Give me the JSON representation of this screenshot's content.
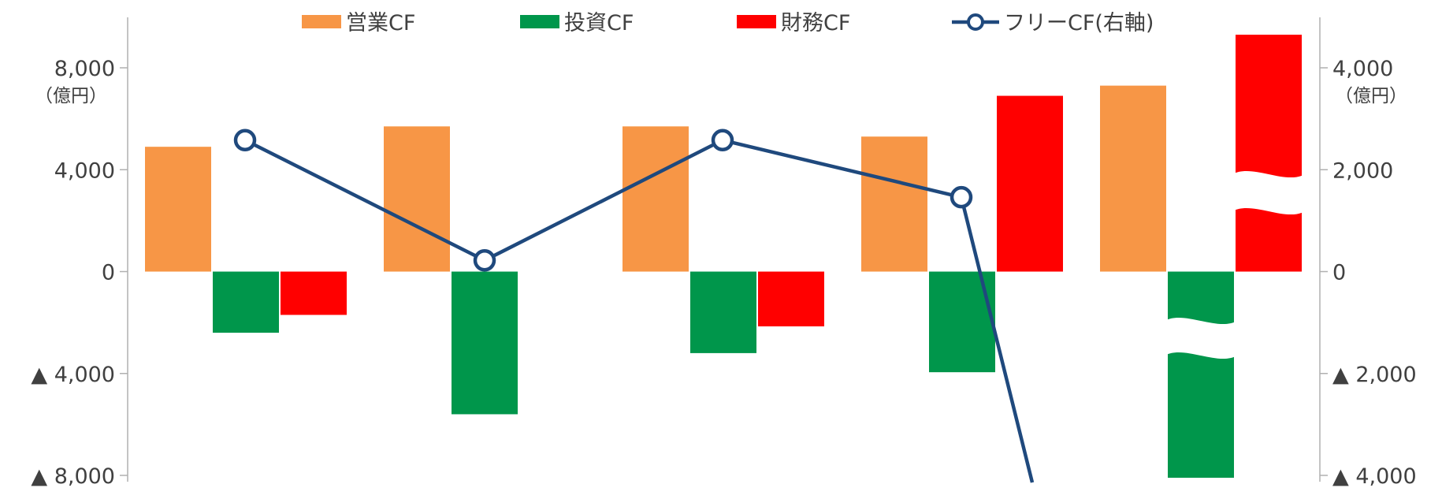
{
  "chart_data": {
    "type": "bar",
    "categories": [
      "",
      "",
      "",
      "",
      ""
    ],
    "series": [
      {
        "name": "営業CF",
        "kind": "bar",
        "axis": "left",
        "color": "#F79646",
        "values": [
          4900,
          5700,
          5700,
          5300,
          7300
        ]
      },
      {
        "name": "投資CF",
        "kind": "bar",
        "axis": "left",
        "color": "#00964B",
        "values": [
          -2400,
          -5600,
          -3200,
          -3950,
          -8100
        ]
      },
      {
        "name": "財務CF",
        "kind": "bar",
        "axis": "left",
        "color": "#FF0000",
        "values": [
          -1700,
          0,
          -2150,
          6900,
          9300
        ]
      },
      {
        "name": "フリーCF(右軸)",
        "kind": "line",
        "axis": "right",
        "color": "#1F497D",
        "values": [
          2580,
          220,
          2580,
          1460,
          -4100
        ]
      }
    ],
    "axis_breaks": {
      "series_index_1_category_4": true,
      "series_index_2_category_4": true
    },
    "left_axis": {
      "ylim": [
        -8000,
        8000
      ],
      "ticks": [
        8000,
        4000,
        0,
        -4000,
        -8000
      ],
      "tick_labels": [
        "8,000",
        "4,000",
        "0",
        "▲ 4,000",
        "▲ 8,000"
      ],
      "unit": "（億円）"
    },
    "right_axis": {
      "ylim": [
        -4000,
        4000
      ],
      "ticks": [
        4000,
        2000,
        0,
        -2000,
        -4000
      ],
      "tick_labels": [
        "4,000",
        "2,000",
        "0",
        "▲ 2,000",
        "▲ 4,000"
      ],
      "unit": "（億円）"
    },
    "legend": {
      "placement": "top-center"
    },
    "grid": false
  }
}
